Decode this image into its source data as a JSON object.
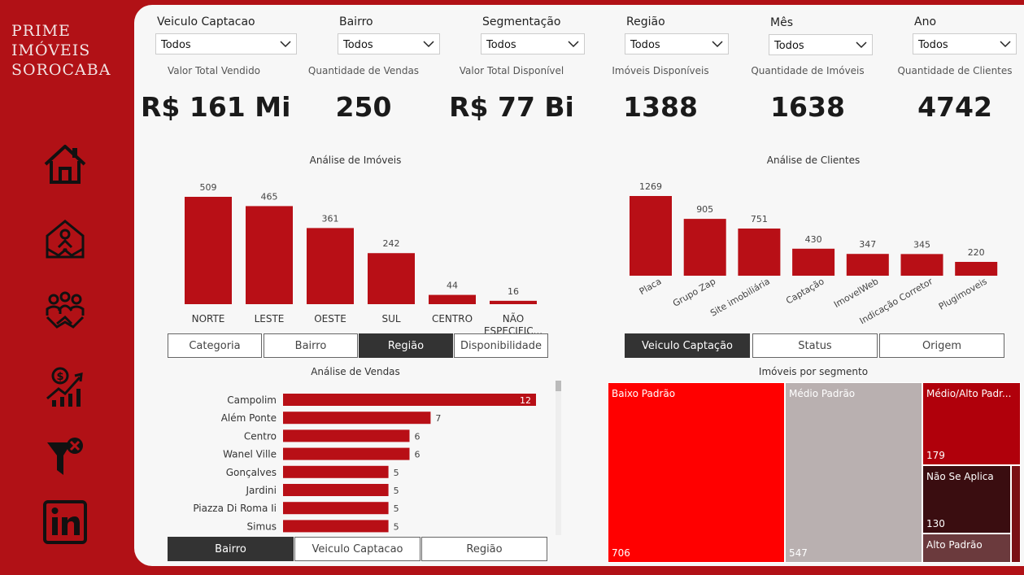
{
  "brand": {
    "line1": "PRIME",
    "line2": "IMÓVEIS",
    "line3": "SOROCABA"
  },
  "nav": [
    "home-icon",
    "handshake-house-icon",
    "team-handshake-icon",
    "sales-growth-icon",
    "filter-clear-icon",
    "linkedin-icon"
  ],
  "filters": [
    {
      "label": "Veiculo Captacao",
      "value": "Todos"
    },
    {
      "label": "Bairro",
      "value": "Todos"
    },
    {
      "label": "Segmentação",
      "value": "Todos"
    },
    {
      "label": "Região",
      "value": "Todos"
    },
    {
      "label": "Mês",
      "value": "Todos"
    },
    {
      "label": "Ano",
      "value": "Todos"
    }
  ],
  "kpis": [
    {
      "label": "Valor Total Vendido",
      "value": "R$ 161 Mi"
    },
    {
      "label": "Quantidade de Vendas",
      "value": "250"
    },
    {
      "label": "Valor Total Disponível",
      "value": "R$ 77 Bi"
    },
    {
      "label": "Imóveis Disponíveis",
      "value": "1388"
    },
    {
      "label": "Quantidade de Imóveis",
      "value": "1638"
    },
    {
      "label": "Quantidade de Clientes",
      "value": "4742"
    }
  ],
  "imoveis_buttons": [
    "Categoria",
    "Bairro",
    "Região",
    "Disponibilidade"
  ],
  "clientes_buttons": [
    "Veiculo Captação",
    "Status",
    "Origem"
  ],
  "vendas_buttons": [
    "Bairro",
    "Veiculo Captacao",
    "Região"
  ],
  "colors": {
    "bar": "#b80f16",
    "accent": "#b11116"
  },
  "chart_data": [
    {
      "type": "bar",
      "title": "Análise de Imóveis",
      "categories": [
        "NORTE",
        "LESTE",
        "OESTE",
        "SUL",
        "CENTRO",
        "NÃO ESPECIFIC..."
      ],
      "values": [
        509,
        465,
        361,
        242,
        44,
        16
      ]
    },
    {
      "type": "bar",
      "title": "Análise de Clientes",
      "categories": [
        "Placa",
        "Grupo Zap",
        "Site imobiliária",
        "Captação",
        "ImovelWeb",
        "Indicação Corretor",
        "Plugimoveis"
      ],
      "values": [
        1269,
        905,
        751,
        430,
        347,
        345,
        220
      ]
    },
    {
      "type": "bar",
      "orientation": "horizontal",
      "title": "Análise de Vendas",
      "categories": [
        "Campolim",
        "Além Ponte",
        "Centro",
        "Wanel Ville",
        "Gonçalves",
        "Jardini",
        "Piazza Di Roma Ii",
        "Simus"
      ],
      "values": [
        12,
        7,
        6,
        6,
        5,
        5,
        5,
        5
      ]
    },
    {
      "type": "treemap",
      "title": "Imóveis por segmento",
      "items": [
        {
          "name": "Baixo Padrão",
          "value": 706,
          "color": "#ff0000"
        },
        {
          "name": "Médio Padrão",
          "value": 547,
          "color": "#b9b0b0"
        },
        {
          "name": "Médio/Alto Padr...",
          "value": 179,
          "color": "#b0000b"
        },
        {
          "name": "Não Se Aplica",
          "value": 130,
          "color": "#3a0d10"
        },
        {
          "name": "Alto Padrão",
          "value": "",
          "color": "#6b3a3d"
        }
      ]
    }
  ]
}
